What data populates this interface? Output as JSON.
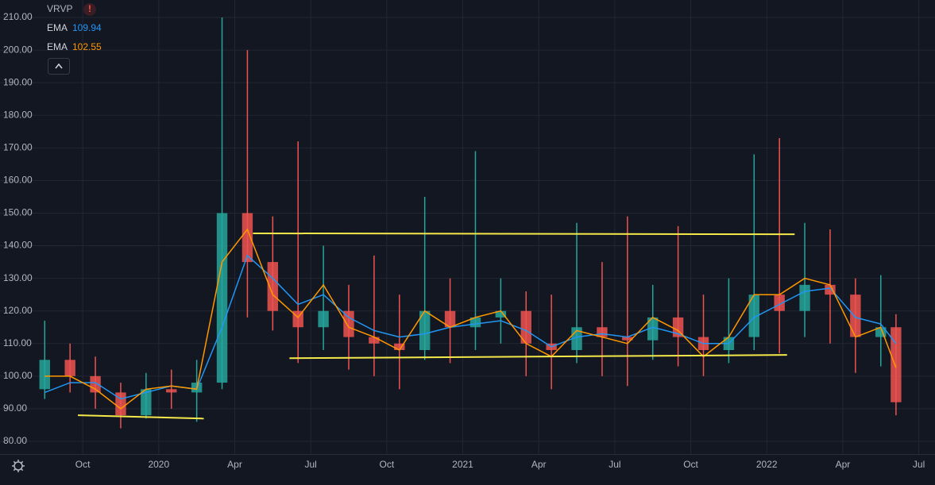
{
  "chart_data": {
    "type": "candlestick",
    "indicators": [
      "VRVP"
    ],
    "x": [
      0.5,
      1.5,
      2.5,
      3.5,
      4.5,
      5.5,
      6.5,
      7.5,
      8.5,
      9.5,
      10.5,
      11.5,
      12.5,
      13.5,
      14.5,
      15.5,
      16.5,
      17.5,
      18.5,
      19.5,
      20.5,
      21.5,
      22.5,
      23.5,
      24.5,
      25.5,
      26.5,
      27.5,
      28.5,
      29.5,
      30.5,
      31.5,
      32.5,
      33.5,
      34.1
    ],
    "open": [
      96,
      105,
      100,
      95,
      88,
      96,
      95,
      98,
      150,
      135,
      120,
      115,
      120,
      112,
      110,
      108,
      120,
      115,
      118,
      120,
      110,
      108,
      115,
      112,
      111,
      118,
      112,
      108,
      112,
      125,
      120,
      128,
      125,
      112,
      115
    ],
    "high": [
      117,
      110,
      106,
      98,
      101,
      102,
      105,
      210,
      200,
      149,
      172,
      140,
      128,
      137,
      125,
      155,
      130,
      169,
      130,
      126,
      125,
      147,
      135,
      149,
      128,
      146,
      125,
      130,
      168,
      173,
      147,
      145,
      130,
      131,
      119
    ],
    "low": [
      93,
      95,
      90,
      84,
      87,
      90,
      86,
      96,
      118,
      114,
      104,
      108,
      102,
      100,
      96,
      105,
      104,
      108,
      110,
      100,
      96,
      104,
      100,
      97,
      105,
      103,
      100,
      104,
      108,
      107,
      112,
      110,
      101,
      103,
      88
    ],
    "close": [
      105,
      100,
      95,
      88,
      96,
      95,
      98,
      150,
      135,
      120,
      115,
      120,
      112,
      110,
      108,
      120,
      115,
      118,
      120,
      110,
      108,
      115,
      112,
      111,
      118,
      112,
      108,
      112,
      125,
      120,
      128,
      125,
      112,
      115,
      92
    ],
    "up_color": "#26a69a",
    "down_color": "#ef5350",
    "series": [
      {
        "name": "EMA",
        "color": "#2196f3",
        "values": [
          95,
          98,
          98,
          93,
          95,
          97,
          96,
          115,
          137,
          130,
          122,
          125,
          118,
          114,
          112,
          113,
          115,
          116,
          117,
          114,
          109,
          112,
          113,
          112,
          115,
          113,
          110,
          110,
          118,
          122,
          126,
          127,
          118,
          116,
          109.94
        ]
      },
      {
        "name": "EMA",
        "color": "#ff9800",
        "values": [
          100,
          100,
          96,
          90,
          96,
          97,
          96,
          135,
          145,
          125,
          118,
          128,
          115,
          112,
          108,
          120,
          115,
          118,
          120,
          110,
          106,
          114,
          112,
          110,
          118,
          114,
          106,
          112,
          125,
          125,
          130,
          128,
          112,
          115,
          102.55
        ]
      }
    ],
    "trendlines": [
      {
        "color": "#f5e94a",
        "x": [
          1.81,
          6.78
        ],
        "y": [
          88,
          87
        ]
      },
      {
        "color": "#f5e94a",
        "x": [
          8.72,
          30.1
        ],
        "y": [
          143.8,
          143.5
        ]
      },
      {
        "color": "#f5e94a",
        "x": [
          10.16,
          29.8
        ],
        "y": [
          105.5,
          106.5
        ]
      }
    ],
    "xlim": [
      0.24,
      35.64
    ],
    "xticks": [
      {
        "value": 2,
        "label": "Oct"
      },
      {
        "value": 5,
        "label": "2020"
      },
      {
        "value": 8,
        "label": "Apr"
      },
      {
        "value": 11,
        "label": "Jul"
      },
      {
        "value": 14,
        "label": "Oct"
      },
      {
        "value": 17,
        "label": "2021"
      },
      {
        "value": 20,
        "label": "Apr"
      },
      {
        "value": 23,
        "label": "Jul"
      },
      {
        "value": 26,
        "label": "Oct"
      },
      {
        "value": 29,
        "label": "2022"
      },
      {
        "value": 32,
        "label": "Apr"
      },
      {
        "value": 35,
        "label": "Jul"
      }
    ],
    "ylim": [
      76.11,
      215.36
    ],
    "yticks": [
      {
        "value": 80,
        "label": "80.00"
      },
      {
        "value": 90,
        "label": "90.00"
      },
      {
        "value": 100,
        "label": "100.00"
      },
      {
        "value": 110,
        "label": "110.00"
      },
      {
        "value": 120,
        "label": "120.00"
      },
      {
        "value": 130,
        "label": "130.00"
      },
      {
        "value": 140,
        "label": "140.00"
      },
      {
        "value": 150,
        "label": "150.00"
      },
      {
        "value": 160,
        "label": "160.00"
      },
      {
        "value": 170,
        "label": "170.00"
      },
      {
        "value": 180,
        "label": "180.00"
      },
      {
        "value": 190,
        "label": "190.00"
      },
      {
        "value": 200,
        "label": "200.00"
      },
      {
        "value": 210,
        "label": "210.00"
      }
    ],
    "grid": true
  }
}
